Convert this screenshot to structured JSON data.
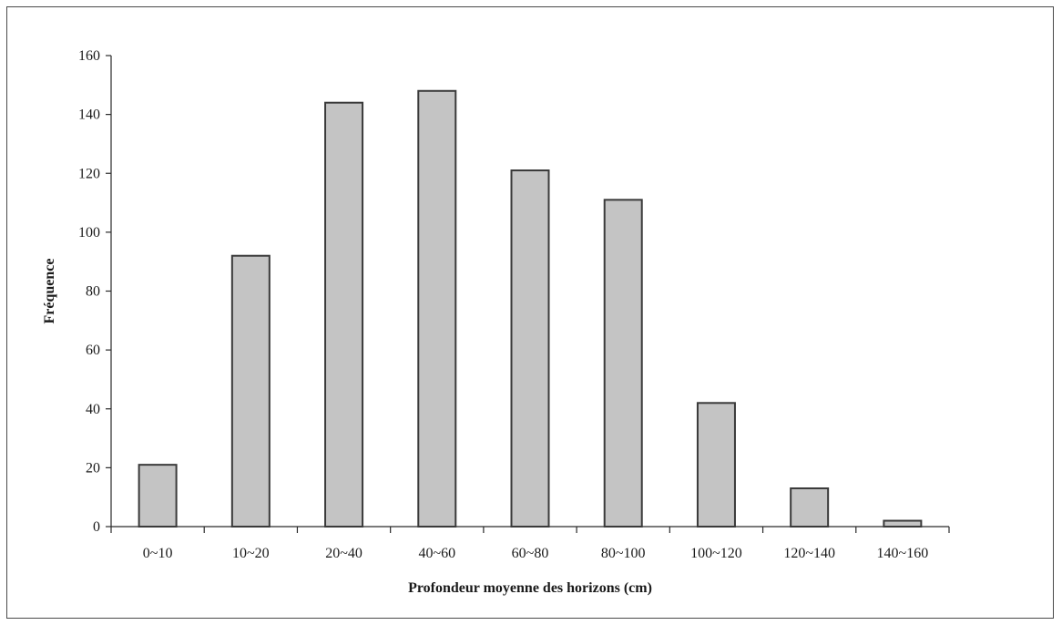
{
  "chart_data": {
    "type": "bar",
    "title": "",
    "xlabel": "Profondeur moyenne des horizons (cm)",
    "ylabel": "Fréquence",
    "categories": [
      "0~10",
      "10~20",
      "20~40",
      "40~60",
      "60~80",
      "80~100",
      "100~120",
      "120~140",
      "140~160"
    ],
    "values": [
      21,
      92,
      144,
      148,
      121,
      111,
      42,
      13,
      2
    ],
    "ylim": [
      0,
      160
    ],
    "yticks": [
      "0",
      "20",
      "40",
      "60",
      "80",
      "100",
      "120",
      "140",
      "160"
    ],
    "grid": false,
    "legend": "none",
    "colors": {
      "bar_fill": "#c4c4c4",
      "bar_stroke": "#3a3a3a",
      "axis": "#2a2a2a"
    }
  }
}
